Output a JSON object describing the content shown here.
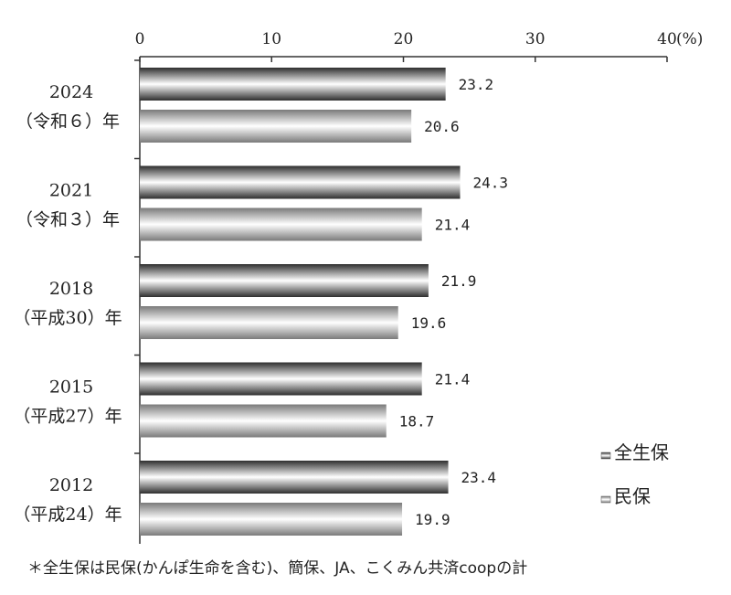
{
  "chart_data": {
    "type": "bar",
    "orientation": "horizontal",
    "categories": [
      {
        "year": "2024",
        "era": "（令和６）年"
      },
      {
        "year": "2021",
        "era": "（令和３）年"
      },
      {
        "year": "2018",
        "era": "（平成30）年"
      },
      {
        "year": "2015",
        "era": "（平成27）年"
      },
      {
        "year": "2012",
        "era": "（平成24）年"
      }
    ],
    "series": [
      {
        "name": "全生保",
        "values": [
          23.2,
          24.3,
          21.9,
          21.4,
          23.4
        ],
        "labels": [
          "23.2",
          "24.3",
          "21.9",
          "21.4",
          "23.4"
        ]
      },
      {
        "name": "民保",
        "values": [
          20.6,
          21.4,
          19.6,
          18.7,
          19.9
        ],
        "labels": [
          "20.6",
          "21.4",
          "19.6",
          "18.7",
          "19.9"
        ]
      }
    ],
    "xlim": [
      0,
      40
    ],
    "x_ticks": [
      "0",
      "10",
      "20",
      "30",
      "40"
    ],
    "x_unit": "(%)",
    "axis_position": "top",
    "grid": false,
    "legend_position": "bottom-right",
    "colors": {
      "series_dark": "#3a3a3a",
      "series_light": "#8a8a8a",
      "axis": "#333333"
    }
  },
  "footnote": "＊全生保は民保(かんぽ生命を含む)、簡保、JA、こくみん共済coopの計"
}
